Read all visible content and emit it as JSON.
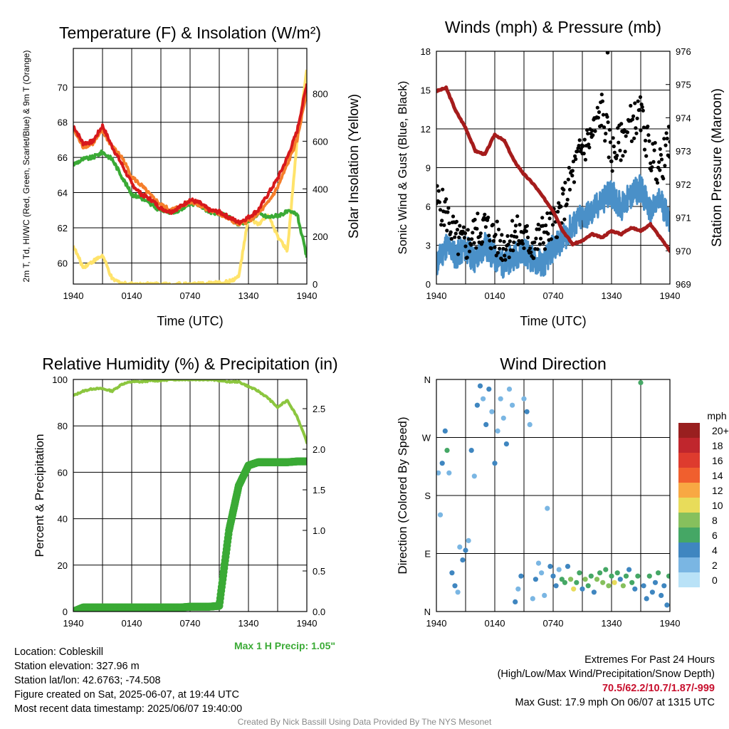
{
  "chart_data": [
    {
      "type": "line",
      "title": "Temperature (F) & Insolation (W/m²)",
      "xlabel": "Time (UTC)",
      "ylabel": "2m T, Td, HI/WC (Red, Green, Scarlet/Blue) & 9m T (Orange)",
      "y2label": "Solar Insolation (Yellow)",
      "x_ticks": [
        "1940",
        "0140",
        "0740",
        "1340",
        "1940"
      ],
      "y_ticks": [
        "60",
        "62",
        "64",
        "66",
        "68",
        "70"
      ],
      "y2_ticks": [
        "0",
        "200",
        "400",
        "600",
        "800"
      ],
      "ylim": [
        58.8,
        72.2
      ],
      "y2lim": [
        0,
        990
      ],
      "grid": true,
      "x_hours": [
        0,
        1,
        2,
        3,
        4,
        5,
        6,
        7,
        8,
        9,
        10,
        11,
        12,
        13,
        14,
        15,
        16,
        17,
        18,
        19,
        20,
        21,
        22,
        23,
        24
      ],
      "series": [
        {
          "role": "2m T",
          "color": "#d7191c",
          "axis": "left",
          "values": [
            67.8,
            66.8,
            66.9,
            67.8,
            66.6,
            65.6,
            64.5,
            63.9,
            63.6,
            63.1,
            62.9,
            63.2,
            63.6,
            63.4,
            63.0,
            62.9,
            62.6,
            62.3,
            62.6,
            63.0,
            63.9,
            64.8,
            66.0,
            67.5,
            70.2
          ]
        },
        {
          "role": "9m T",
          "color": "#f57e2b",
          "axis": "left",
          "values": [
            67.6,
            66.6,
            66.8,
            67.5,
            66.6,
            66.0,
            64.9,
            64.4,
            63.8,
            63.3,
            63.0,
            63.2,
            63.5,
            63.3,
            63.0,
            62.8,
            62.5,
            62.2,
            62.4,
            62.8,
            63.4,
            64.3,
            65.6,
            67.0,
            69.8
          ]
        },
        {
          "role": "Td",
          "color": "#3aaa35",
          "axis": "left",
          "values": [
            65.6,
            65.9,
            66.0,
            66.3,
            65.9,
            64.9,
            63.9,
            63.7,
            63.3,
            63.0,
            62.9,
            63.0,
            63.4,
            63.3,
            62.9,
            62.8,
            62.6,
            62.2,
            62.4,
            62.8,
            62.6,
            62.7,
            62.9,
            62.8,
            60.3
          ]
        },
        {
          "role": "Solar Insolation",
          "color": "#ffe36b",
          "axis": "right",
          "values": [
            160,
            70,
            95,
            120,
            20,
            4,
            0,
            0,
            0,
            0,
            0,
            0,
            0,
            0,
            3,
            5,
            10,
            30,
            280,
            250,
            290,
            200,
            140,
            600,
            900
          ]
        }
      ]
    },
    {
      "type": "line",
      "title": "Winds (mph) & Pressure (mb)",
      "xlabel": "Time (UTC)",
      "ylabel": "Sonic Wind & Gust (Blue, Black)",
      "y2label": "Station Pressure (Maroon)",
      "x_ticks": [
        "1940",
        "0140",
        "0740",
        "1340",
        "1940"
      ],
      "y_ticks": [
        "0",
        "3",
        "6",
        "9",
        "12",
        "15",
        "18"
      ],
      "y2_ticks": [
        "969",
        "970",
        "971",
        "972",
        "973",
        "974",
        "975",
        "976"
      ],
      "ylim": [
        0,
        18
      ],
      "y2lim": [
        969,
        976
      ],
      "grid": true,
      "x_hours": [
        0,
        1,
        2,
        3,
        4,
        5,
        6,
        7,
        8,
        9,
        10,
        11,
        12,
        13,
        14,
        15,
        16,
        17,
        18,
        19,
        20,
        21,
        22,
        23,
        24
      ],
      "series": [
        {
          "role": "Sonic Wind",
          "color": "#4a90c8",
          "axis": "left",
          "values": [
            1.5,
            3.0,
            2.2,
            2.8,
            1.8,
            3.0,
            2.0,
            1.5,
            2.2,
            2.6,
            1.8,
            1.6,
            2.8,
            3.5,
            4.5,
            5.2,
            5.5,
            6.5,
            7.0,
            6.0,
            6.8,
            7.5,
            5.5,
            6.5,
            5.0
          ]
        },
        {
          "role": "Gust",
          "color": "#000000",
          "axis": "left",
          "values": [
            6.5,
            5.5,
            3.5,
            3.0,
            4.0,
            4.5,
            3.5,
            3.0,
            4.0,
            3.5,
            3.0,
            4.0,
            4.5,
            6.0,
            8.5,
            10.5,
            11.5,
            13.5,
            10.0,
            11.0,
            12.5,
            13.0,
            10.0,
            9.0,
            11.0
          ]
        },
        {
          "role": "Station Pressure",
          "color": "#a51c1c",
          "axis": "right",
          "values": [
            974.8,
            974.9,
            974.2,
            973.7,
            973.0,
            972.9,
            973.5,
            973.3,
            972.7,
            972.3,
            972.0,
            971.6,
            971.2,
            970.6,
            970.2,
            970.3,
            970.5,
            970.4,
            970.6,
            970.5,
            970.7,
            970.6,
            970.8,
            970.4,
            970.0
          ]
        }
      ],
      "max_gust_point": {
        "hour": 17.6,
        "value": 17.9
      }
    },
    {
      "type": "line",
      "title": "Relative Humidity (%) & Precipitation (in)",
      "ylabel": "Percent & Precipitation",
      "x_ticks": [
        "1940",
        "0140",
        "0740",
        "1340",
        "1940"
      ],
      "y_ticks": [
        "0",
        "20",
        "40",
        "60",
        "80",
        "100"
      ],
      "y2_ticks": [
        "0.0",
        "0.5",
        "1.0",
        "1.5",
        "2.0",
        "2.5"
      ],
      "ylim": [
        0,
        100
      ],
      "y2lim": [
        0,
        2.86
      ],
      "grid": true,
      "x_hours": [
        0,
        1,
        2,
        3,
        4,
        5,
        6,
        7,
        8,
        9,
        10,
        11,
        12,
        13,
        14,
        15,
        16,
        17,
        18,
        19,
        20,
        21,
        22,
        23,
        24
      ],
      "series": [
        {
          "role": "Relative Humidity",
          "color": "#8cc63f",
          "axis": "left",
          "values": [
            93,
            95,
            96,
            96,
            95,
            98,
            99,
            99,
            99.5,
            99.5,
            100,
            100,
            100,
            100,
            100,
            99.5,
            99,
            99,
            97,
            95,
            92,
            88,
            91,
            84,
            73
          ]
        },
        {
          "role": "Precipitation",
          "color": "#3aaa35",
          "axis": "right",
          "values": [
            0,
            0.05,
            0.05,
            0.05,
            0.05,
            0.05,
            0.05,
            0.05,
            0.05,
            0.05,
            0.05,
            0.05,
            0.06,
            0.06,
            0.06,
            0.07,
            1.0,
            1.55,
            1.8,
            1.84,
            1.84,
            1.84,
            1.84,
            1.85,
            1.85
          ]
        }
      ],
      "annotation": "Max 1 H Precip: 1.05\""
    },
    {
      "type": "scatter",
      "title": "Wind Direction",
      "ylabel": "Direction (Colored By Speed)",
      "x_ticks": [
        "1940",
        "0140",
        "0740",
        "1340",
        "1940"
      ],
      "y_ticks": [
        "N",
        "E",
        "S",
        "W",
        "N"
      ],
      "ylim": [
        0,
        360
      ],
      "grid": true,
      "legend": {
        "title": "mph",
        "placement": "right",
        "labels": [
          "20+",
          "18",
          "16",
          "14",
          "12",
          "10",
          "8",
          "6",
          "4",
          "2",
          "0"
        ],
        "colors": [
          "#991f1f",
          "#c0262d",
          "#de3b2e",
          "#f05f2e",
          "#f8a843",
          "#e8dc5a",
          "#86c05d",
          "#45a765",
          "#3f86c0",
          "#7ab6e3",
          "#b9e2f7"
        ]
      },
      "points": [
        {
          "hour": 0.2,
          "dir": 215,
          "speed": 2
        },
        {
          "hour": 0.4,
          "dir": 150,
          "speed": 1
        },
        {
          "hour": 0.6,
          "dir": 230,
          "speed": 3
        },
        {
          "hour": 0.9,
          "dir": 280,
          "speed": 4
        },
        {
          "hour": 1.1,
          "dir": 250,
          "speed": 5
        },
        {
          "hour": 1.3,
          "dir": 215,
          "speed": 1
        },
        {
          "hour": 1.6,
          "dir": 60,
          "speed": 3
        },
        {
          "hour": 1.9,
          "dir": 40,
          "speed": 4
        },
        {
          "hour": 2.2,
          "dir": 30,
          "speed": 2
        },
        {
          "hour": 2.4,
          "dir": 100,
          "speed": 2
        },
        {
          "hour": 2.7,
          "dir": 80,
          "speed": 3
        },
        {
          "hour": 3.0,
          "dir": 95,
          "speed": 4
        },
        {
          "hour": 3.3,
          "dir": 110,
          "speed": 2
        },
        {
          "hour": 3.6,
          "dir": 250,
          "speed": 3
        },
        {
          "hour": 3.9,
          "dir": 210,
          "speed": 2
        },
        {
          "hour": 4.2,
          "dir": 320,
          "speed": 4
        },
        {
          "hour": 4.5,
          "dir": 350,
          "speed": 3
        },
        {
          "hour": 4.8,
          "dir": 330,
          "speed": 2
        },
        {
          "hour": 5.1,
          "dir": 290,
          "speed": 3
        },
        {
          "hour": 5.4,
          "dir": 345,
          "speed": 4
        },
        {
          "hour": 5.7,
          "dir": 310,
          "speed": 2
        },
        {
          "hour": 6.0,
          "dir": 230,
          "speed": 3
        },
        {
          "hour": 6.3,
          "dir": 280,
          "speed": 2
        },
        {
          "hour": 6.6,
          "dir": 330,
          "speed": 1
        },
        {
          "hour": 6.9,
          "dir": 300,
          "speed": 2
        },
        {
          "hour": 7.2,
          "dir": 260,
          "speed": 4
        },
        {
          "hour": 7.5,
          "dir": 345,
          "speed": 2
        },
        {
          "hour": 7.8,
          "dir": 320,
          "speed": 1
        },
        {
          "hour": 8.1,
          "dir": 15,
          "speed": 3
        },
        {
          "hour": 8.4,
          "dir": 35,
          "speed": 2
        },
        {
          "hour": 8.7,
          "dir": 55,
          "speed": 4
        },
        {
          "hour": 9.0,
          "dir": 330,
          "speed": 2
        },
        {
          "hour": 9.3,
          "dir": 310,
          "speed": 3
        },
        {
          "hour": 9.6,
          "dir": 290,
          "speed": 1
        },
        {
          "hour": 9.9,
          "dir": 20,
          "speed": 2
        },
        {
          "hour": 10.2,
          "dir": 50,
          "speed": 3
        },
        {
          "hour": 10.5,
          "dir": 75,
          "speed": 2
        },
        {
          "hour": 10.8,
          "dir": 60,
          "speed": 1
        },
        {
          "hour": 11.1,
          "dir": 25,
          "speed": 2
        },
        {
          "hour": 11.4,
          "dir": 160,
          "speed": 2
        },
        {
          "hour": 11.7,
          "dir": 70,
          "speed": 3
        },
        {
          "hour": 12.0,
          "dir": 55,
          "speed": 4
        },
        {
          "hour": 12.3,
          "dir": 40,
          "speed": 3
        },
        {
          "hour": 12.6,
          "dir": 65,
          "speed": 2
        },
        {
          "hour": 12.9,
          "dir": 50,
          "speed": 5
        },
        {
          "hour": 13.2,
          "dir": 45,
          "speed": 6
        },
        {
          "hour": 13.5,
          "dir": 70,
          "speed": 4
        },
        {
          "hour": 13.8,
          "dir": 50,
          "speed": 8
        },
        {
          "hour": 14.1,
          "dir": 35,
          "speed": 9
        },
        {
          "hour": 14.4,
          "dir": 45,
          "speed": 5
        },
        {
          "hour": 14.7,
          "dir": 60,
          "speed": 6
        },
        {
          "hour": 15.0,
          "dir": 35,
          "speed": 4
        },
        {
          "hour": 15.3,
          "dir": 50,
          "speed": 7
        },
        {
          "hour": 15.6,
          "dir": 40,
          "speed": 5
        },
        {
          "hour": 15.9,
          "dir": 55,
          "speed": 6
        },
        {
          "hour": 16.2,
          "dir": 30,
          "speed": 4
        },
        {
          "hour": 16.5,
          "dir": 50,
          "speed": 8
        },
        {
          "hour": 16.8,
          "dir": 60,
          "speed": 5
        },
        {
          "hour": 17.1,
          "dir": 45,
          "speed": 7
        },
        {
          "hour": 17.4,
          "dir": 65,
          "speed": 6
        },
        {
          "hour": 17.7,
          "dir": 40,
          "speed": 8
        },
        {
          "hour": 18.0,
          "dir": 55,
          "speed": 5
        },
        {
          "hour": 18.3,
          "dir": 45,
          "speed": 9
        },
        {
          "hour": 18.6,
          "dir": 60,
          "speed": 6
        },
        {
          "hour": 18.9,
          "dir": 50,
          "speed": 4
        },
        {
          "hour": 19.2,
          "dir": 40,
          "speed": 7
        },
        {
          "hour": 19.5,
          "dir": 55,
          "speed": 5
        },
        {
          "hour": 19.8,
          "dir": 65,
          "speed": 4
        },
        {
          "hour": 20.1,
          "dir": 45,
          "speed": 6
        },
        {
          "hour": 20.4,
          "dir": 35,
          "speed": 4
        },
        {
          "hour": 20.7,
          "dir": 55,
          "speed": 5
        },
        {
          "hour": 21.0,
          "dir": 355,
          "speed": 6
        },
        {
          "hour": 21.3,
          "dir": 40,
          "speed": 3
        },
        {
          "hour": 21.6,
          "dir": 20,
          "speed": 4
        },
        {
          "hour": 21.9,
          "dir": 55,
          "speed": 5
        },
        {
          "hour": 22.2,
          "dir": 30,
          "speed": 3
        },
        {
          "hour": 22.5,
          "dir": 45,
          "speed": 4
        },
        {
          "hour": 22.8,
          "dir": 60,
          "speed": 5
        },
        {
          "hour": 23.1,
          "dir": 25,
          "speed": 4
        },
        {
          "hour": 23.4,
          "dir": 40,
          "speed": 3
        },
        {
          "hour": 23.7,
          "dir": 10,
          "speed": 4
        },
        {
          "hour": 23.9,
          "dir": 55,
          "speed": 5
        }
      ]
    }
  ],
  "info": {
    "location": "Location: Cobleskill",
    "elevation": "Station elevation: 327.96 m",
    "latlon": "Station lat/lon: 42.6763; -74.508",
    "created": "Figure created on Sat, 2025-06-07, at 19:44 UTC",
    "recent": "Most recent data timestamp: 2025/06/07 19:40:00"
  },
  "extremes": {
    "title": "Extremes For Past 24 Hours",
    "subtitle": "(High/Low/Max Wind/Precipitation/Snow Depth)",
    "values": "70.5/62.2/10.7/1.87/-999",
    "max_gust": "Max Gust: 17.9 mph On 06/07 at 1315 UTC"
  },
  "credit": "Created By Nick Bassill Using Data Provided By The NYS Mesonet"
}
